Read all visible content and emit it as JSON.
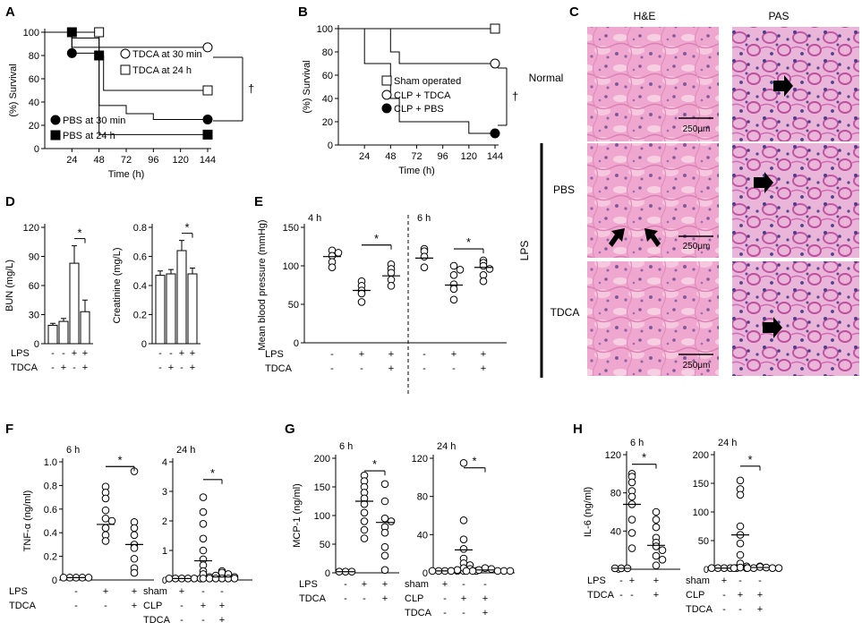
{
  "panels": {
    "A": "A",
    "B": "B",
    "C": "C",
    "D": "D",
    "E": "E",
    "F": "F",
    "G": "G",
    "H": "H"
  },
  "C": {
    "col_he": "H&E",
    "col_pas": "PAS",
    "row_normal": "Normal",
    "row_pbs": "PBS",
    "row_tdca": "TDCA",
    "group": "LPS",
    "scale": "250μm",
    "colors": {
      "he": "#efa7cf",
      "pas": "#c455a6",
      "nuclei": "#4d3f8a"
    }
  },
  "common": {
    "star": "*",
    "dagger": "†"
  },
  "chart_data": [
    {
      "id": "A",
      "type": "line",
      "subtype": "kaplan-meier",
      "ylabel": "(%) Survival",
      "xlabel": "Time (h)",
      "xticks": [
        "24",
        "48",
        "72",
        "96",
        "120",
        "144"
      ],
      "yticks": [
        "0",
        "20",
        "40",
        "60",
        "80",
        "100"
      ],
      "xlim": [
        0,
        144
      ],
      "ylim": [
        0,
        100
      ],
      "series": [
        {
          "name": "TDCA  at 30 min",
          "marker": "circle-open",
          "steps": [
            [
              0,
              100
            ],
            [
              24,
              100
            ],
            [
              24,
              87
            ],
            [
              144,
              87
            ]
          ]
        },
        {
          "name": "TDCA  at 24 h",
          "marker": "square-open",
          "steps": [
            [
              0,
              100
            ],
            [
              48,
              100
            ],
            [
              48,
              80
            ],
            [
              52,
              80
            ],
            [
              52,
              50
            ],
            [
              144,
              50
            ]
          ]
        },
        {
          "name": "PBS at 30 min",
          "marker": "circle-filled",
          "steps": [
            [
              0,
              100
            ],
            [
              24,
              100
            ],
            [
              24,
              82
            ],
            [
              48,
              82
            ],
            [
              48,
              37
            ],
            [
              72,
              37
            ],
            [
              72,
              30
            ],
            [
              96,
              30
            ],
            [
              96,
              25
            ],
            [
              144,
              25
            ]
          ]
        },
        {
          "name": "PBS at 24 h",
          "marker": "square-filled",
          "steps": [
            [
              0,
              100
            ],
            [
              24,
              100
            ],
            [
              24,
              95
            ],
            [
              48,
              95
            ],
            [
              48,
              12
            ],
            [
              144,
              12
            ]
          ]
        }
      ],
      "annotation": "†"
    },
    {
      "id": "B",
      "type": "line",
      "subtype": "kaplan-meier",
      "ylabel": "(%) Survival",
      "xlabel": "Time (h)",
      "xticks": [
        "24",
        "48",
        "72",
        "96",
        "120",
        "144"
      ],
      "yticks": [
        "0",
        "20",
        "40",
        "60",
        "80",
        "100"
      ],
      "xlim": [
        0,
        144
      ],
      "ylim": [
        0,
        100
      ],
      "series": [
        {
          "name": "Sham operated",
          "marker": "square-open",
          "steps": [
            [
              0,
              100
            ],
            [
              144,
              100
            ]
          ]
        },
        {
          "name": "CLP + TDCA",
          "marker": "circle-open",
          "steps": [
            [
              0,
              100
            ],
            [
              48,
              100
            ],
            [
              48,
              80
            ],
            [
              56,
              80
            ],
            [
              56,
              70
            ],
            [
              144,
              70
            ]
          ]
        },
        {
          "name": "CLP + PBS",
          "marker": "circle-filled",
          "steps": [
            [
              0,
              100
            ],
            [
              24,
              100
            ],
            [
              24,
              70
            ],
            [
              48,
              70
            ],
            [
              48,
              40
            ],
            [
              56,
              40
            ],
            [
              56,
              20
            ],
            [
              120,
              20
            ],
            [
              120,
              10
            ],
            [
              144,
              10
            ]
          ]
        }
      ],
      "annotation": "†"
    },
    {
      "id": "D1",
      "type": "bar",
      "ylabel": "BUN (mg/L)",
      "yticks": [
        "0",
        "30",
        "60",
        "90",
        "120"
      ],
      "ylim": [
        0,
        120
      ],
      "values": [
        19,
        23,
        83,
        33
      ],
      "errors": [
        2,
        3,
        18,
        12
      ],
      "rows": {
        "LPS": [
          "-",
          "-",
          "+",
          "+"
        ],
        "TDCA": [
          "-",
          "+",
          "-",
          "+"
        ]
      },
      "row_labels": [
        "LPS",
        "TDCA"
      ],
      "sig": [
        2,
        3
      ]
    },
    {
      "id": "D2",
      "type": "bar",
      "ylabel": "Creatinine  (mg/L)",
      "yticks": [
        "0",
        "0.2",
        "0.4",
        "0.6",
        "0.8"
      ],
      "ylim": [
        0,
        0.8
      ],
      "values": [
        0.47,
        0.48,
        0.64,
        0.48
      ],
      "errors": [
        0.03,
        0.03,
        0.07,
        0.04
      ],
      "rows": {
        "LPS": [
          "-",
          "-",
          "+",
          "+"
        ],
        "TDCA": [
          "-",
          "+",
          "-",
          "+"
        ]
      },
      "sig": [
        2,
        3
      ]
    },
    {
      "id": "E",
      "type": "scatter",
      "ylabel": "Mean blood pressure (mmHg)",
      "yticks": [
        "0",
        "50",
        "100",
        "150"
      ],
      "ylim": [
        0,
        150
      ],
      "time_labels": [
        "4 h",
        "6 h"
      ],
      "row_labels": [
        "LPS",
        "TDCA"
      ],
      "groups": [
        {
          "LPS": "-",
          "TDCA": "-",
          "points": [
            120,
            117,
            113,
            105,
            98
          ],
          "mean": 112
        },
        {
          "LPS": "+",
          "TDCA": "-",
          "points": [
            80,
            74,
            68,
            64,
            53
          ],
          "mean": 68
        },
        {
          "LPS": "+",
          "TDCA": "+",
          "points": [
            102,
            96,
            91,
            82,
            74
          ],
          "mean": 87
        },
        {
          "LPS": "-",
          "TDCA": "-",
          "points": [
            122,
            119,
            112,
            98
          ],
          "mean": 110
        },
        {
          "LPS": "+",
          "TDCA": "-",
          "points": [
            100,
            95,
            88,
            76,
            70,
            56
          ],
          "mean": 75
        },
        {
          "LPS": "+",
          "TDCA": "+",
          "points": [
            107,
            104,
            100,
            96,
            88,
            80
          ],
          "mean": 98
        }
      ],
      "sig": [
        [
          1,
          2
        ],
        [
          4,
          5
        ]
      ]
    },
    {
      "id": "F1",
      "type": "scatter",
      "time_label": "6 h",
      "ylabel": "TNF-α (ng/ml)",
      "yticks": [
        "0",
        "0.2",
        "0.4",
        "0.6",
        "0.8",
        "1.0"
      ],
      "ylim": [
        0,
        1.0
      ],
      "row_labels": [
        "LPS",
        "TDCA"
      ],
      "groups": [
        {
          "rows": [
            "-",
            "-"
          ],
          "points": [
            0.02,
            0.02,
            0.02,
            0.02,
            0.02
          ],
          "mean": 0.02
        },
        {
          "rows": [
            "+",
            "-"
          ],
          "points": [
            0.79,
            0.74,
            0.69,
            0.59,
            0.52,
            0.5,
            0.44,
            0.38,
            0.33
          ],
          "mean": 0.47
        },
        {
          "rows": [
            "+",
            "+"
          ],
          "points": [
            0.92,
            0.49,
            0.44,
            0.38,
            0.3,
            0.27,
            0.18,
            0.1,
            0.06
          ],
          "mean": 0.3
        }
      ],
      "sig": [
        1,
        2
      ]
    },
    {
      "id": "F2",
      "type": "scatter",
      "time_label": "24 h",
      "yticks": [
        "0",
        "1",
        "2",
        "3",
        "4"
      ],
      "ylim": [
        0,
        4
      ],
      "row_labels": [
        "sham",
        "CLP",
        "TDCA"
      ],
      "groups": [
        {
          "rows": [
            "+",
            "-",
            "-"
          ],
          "points": [
            0.05,
            0.05,
            0.05,
            0.05,
            0.05,
            0.05
          ],
          "mean": 0.05
        },
        {
          "rows": [
            "-",
            "+",
            "-"
          ],
          "points": [
            2.8,
            2.3,
            1.9,
            1.4,
            1.0,
            0.7,
            0.5,
            0.3,
            0.2,
            0.1,
            0.05,
            0.05
          ],
          "mean": 0.65
        },
        {
          "rows": [
            "-",
            "+",
            "+"
          ],
          "points": [
            0.3,
            0.25,
            0.2,
            0.15,
            0.1,
            0.05,
            0.05,
            0.05,
            0.05
          ],
          "mean": 0.1
        }
      ],
      "sig": [
        1,
        2
      ]
    },
    {
      "id": "G1",
      "type": "scatter",
      "time_label": "6 h",
      "ylabel": "MCP-1  (ng/ml)",
      "yticks": [
        "0",
        "50",
        "100",
        "150",
        "200"
      ],
      "ylim": [
        0,
        200
      ],
      "row_labels": [
        "LPS",
        "TDCA"
      ],
      "groups": [
        {
          "rows": [
            "-",
            "-"
          ],
          "points": [
            2,
            2,
            2
          ],
          "mean": 2
        },
        {
          "rows": [
            "+",
            "-"
          ],
          "points": [
            170,
            160,
            150,
            140,
            130,
            120,
            105,
            90,
            75,
            60
          ],
          "mean": 125
        },
        {
          "rows": [
            "+",
            "+"
          ],
          "points": [
            155,
            125,
            95,
            90,
            80,
            70,
            45,
            30,
            5
          ],
          "mean": 88
        }
      ],
      "sig": [
        1,
        2
      ]
    },
    {
      "id": "G2",
      "type": "scatter",
      "time_label": "24 h",
      "yticks": [
        "0",
        "40",
        "80",
        "120"
      ],
      "ylim": [
        0,
        120
      ],
      "row_labels": [
        "sham",
        "CLP",
        "TDCA"
      ],
      "groups": [
        {
          "rows": [
            "+",
            "-",
            "-"
          ],
          "points": [
            2,
            2,
            2,
            2,
            2,
            2
          ],
          "mean": 2
        },
        {
          "rows": [
            "-",
            "+",
            "-"
          ],
          "points": [
            115,
            55,
            35,
            25,
            15,
            10,
            8,
            5,
            4,
            3,
            2,
            2
          ],
          "mean": 24
        },
        {
          "rows": [
            "-",
            "+",
            "+"
          ],
          "points": [
            5,
            4,
            3,
            2,
            2,
            2,
            2,
            2
          ],
          "mean": 3
        }
      ],
      "sig": [
        1,
        2
      ]
    },
    {
      "id": "H1",
      "type": "scatter",
      "time_label": "6 h",
      "ylabel": "IL-6  (ng/ml)",
      "yticks": [
        "0",
        "40",
        "80",
        "120"
      ],
      "ylim": [
        0,
        120
      ],
      "row_labels": [
        "LPS",
        "TDCA"
      ],
      "groups": [
        {
          "rows": [
            "-",
            "-"
          ],
          "points": [
            1,
            1,
            1
          ],
          "mean": 1
        },
        {
          "rows": [
            "+",
            "-"
          ],
          "points": [
            100,
            97,
            91,
            82,
            76,
            68,
            52,
            38,
            22
          ],
          "mean": 68
        },
        {
          "rows": [
            "+",
            "+"
          ],
          "points": [
            60,
            52,
            44,
            33,
            28,
            24,
            20,
            14,
            10,
            4
          ],
          "mean": 25
        }
      ],
      "sig": [
        1,
        2
      ]
    },
    {
      "id": "H2",
      "type": "scatter",
      "time_label": "24 h",
      "yticks": [
        "0",
        "50",
        "100",
        "150",
        "200"
      ],
      "ylim": [
        0,
        200
      ],
      "row_labels": [
        "sham",
        "CLP",
        "TDCA"
      ],
      "groups": [
        {
          "rows": [
            "+",
            "-",
            "-"
          ],
          "points": [
            2,
            2,
            2,
            2,
            2
          ],
          "mean": 2
        },
        {
          "rows": [
            "-",
            "+",
            "-"
          ],
          "points": [
            155,
            140,
            130,
            75,
            60,
            45,
            25,
            10,
            5,
            3,
            2,
            2
          ],
          "mean": 60
        },
        {
          "rows": [
            "-",
            "+",
            "+"
          ],
          "points": [
            5,
            4,
            3,
            2,
            2,
            2,
            2
          ],
          "mean": 3
        }
      ],
      "sig": [
        1,
        2
      ]
    }
  ]
}
